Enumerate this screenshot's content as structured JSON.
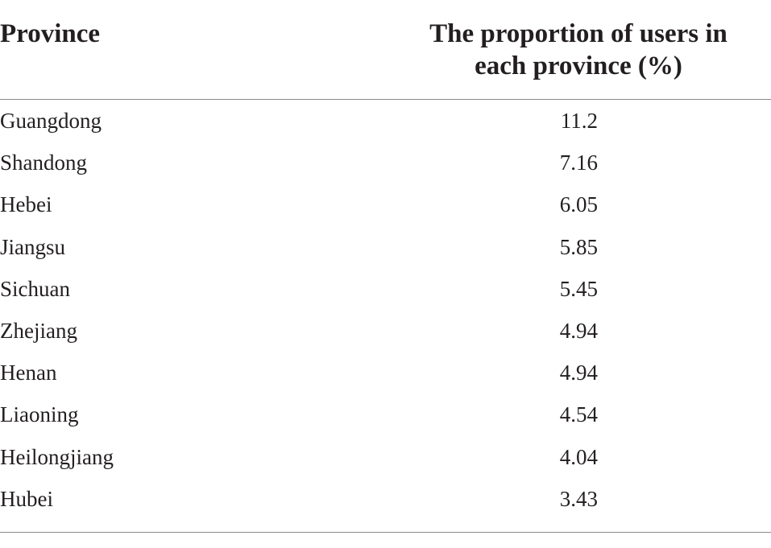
{
  "table": {
    "header": [
      "Province",
      [
        "The proportion of users in",
        "each province (%)"
      ]
    ],
    "rows": [
      [
        "Guangdong",
        11.2
      ],
      [
        "Shandong",
        7.16
      ],
      [
        "Hebei",
        6.05
      ],
      [
        "Jiangsu",
        5.85
      ],
      [
        "Sichuan",
        5.45
      ],
      [
        "Zhejiang",
        4.94
      ],
      [
        "Henan",
        4.94
      ],
      [
        "Liaoning",
        4.54
      ],
      [
        "Heilongjiang",
        4.04
      ],
      [
        "Hubei",
        3.43
      ]
    ]
  }
}
